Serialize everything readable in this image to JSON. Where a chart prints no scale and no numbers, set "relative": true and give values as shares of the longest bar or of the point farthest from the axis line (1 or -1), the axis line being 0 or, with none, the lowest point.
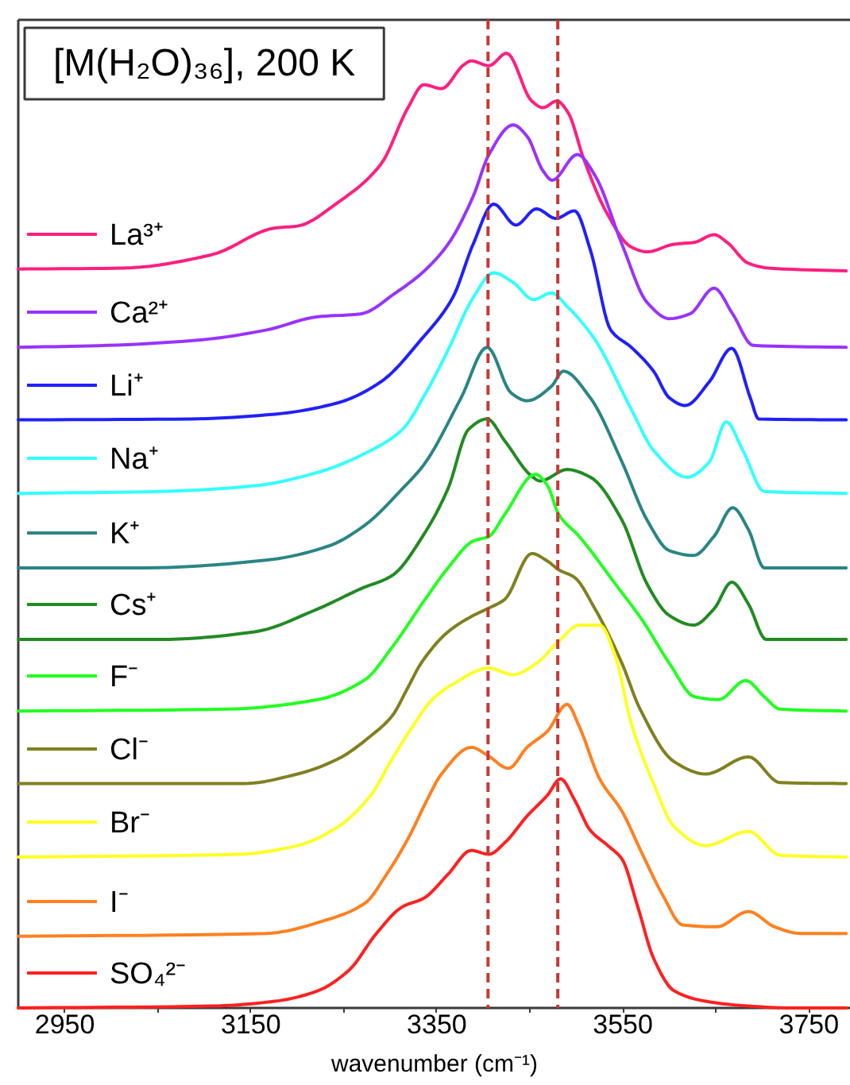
{
  "chart_data": {
    "type": "line",
    "title": "[M(H₂O)₃₆], 200 K",
    "xlabel": "wavenumber (cm⁻¹)",
    "relative": true,
    "xlim": [
      2900,
      3795
    ],
    "xticks": [
      2950,
      {
        "value": 3050,
        "label": null
      },
      3150,
      {
        "value": 3250,
        "label": null
      },
      3350,
      {
        "value": 3450,
        "label": null
      },
      3550,
      {
        "value": 3650,
        "label": null
      },
      3750
    ],
    "tick_labels": "x",
    "grid": false,
    "legend": "left",
    "ref_lines": [
      {
        "axis": "x",
        "value": 3405,
        "color": "#c83737",
        "line_style": "dashed"
      },
      {
        "axis": "x",
        "value": 3480,
        "color": "#c83737",
        "line_style": "dashed"
      }
    ],
    "series": [
      {
        "name": "La³⁺",
        "color": "#ff1f80",
        "x": [
          2900,
          3013,
          3108,
          3176,
          3200,
          3244,
          3290,
          3319,
          3336,
          3355,
          3379,
          3387,
          3406,
          3425,
          3452,
          3464,
          3479,
          3491,
          3508,
          3532,
          3559,
          3576,
          3605,
          3627,
          3648,
          3662,
          3685,
          3707,
          3790
        ],
        "values": [
          0.774,
          0.775,
          0.789,
          0.817,
          0.819,
          0.844,
          0.884,
          0.943,
          0.967,
          0.963,
          0.988,
          0.992,
          0.987,
          1.0,
          0.95,
          0.943,
          0.95,
          0.938,
          0.889,
          0.834,
          0.797,
          0.792,
          0.8,
          0.802,
          0.81,
          0.802,
          0.78,
          0.775,
          0.772
        ]
      },
      {
        "name": "Ca²⁺",
        "color": "#9933ff",
        "x": [
          2900,
          2996,
          3098,
          3166,
          3222,
          3268,
          3307,
          3333,
          3362,
          3389,
          3406,
          3432,
          3447,
          3464,
          3474,
          3501,
          3520,
          3549,
          3576,
          3600,
          3622,
          3648,
          3668,
          3690,
          3790
        ],
        "values": [
          0.692,
          0.694,
          0.7,
          0.71,
          0.724,
          0.727,
          0.75,
          0.769,
          0.8,
          0.85,
          0.894,
          0.925,
          0.913,
          0.877,
          0.867,
          0.894,
          0.872,
          0.8,
          0.739,
          0.722,
          0.727,
          0.754,
          0.727,
          0.694,
          0.692
        ]
      },
      {
        "name": "Li⁺",
        "color": "#2020ff",
        "x": [
          2900,
          3086,
          3176,
          3244,
          3290,
          3333,
          3367,
          3389,
          3411,
          3435,
          3457,
          3478,
          3498,
          3515,
          3537,
          3559,
          3583,
          3600,
          3617,
          3643,
          3667,
          3687,
          3696,
          3790
        ],
        "values": [
          0.616,
          0.617,
          0.622,
          0.634,
          0.656,
          0.7,
          0.744,
          0.8,
          0.842,
          0.82,
          0.837,
          0.827,
          0.835,
          0.794,
          0.71,
          0.692,
          0.667,
          0.639,
          0.631,
          0.656,
          0.691,
          0.639,
          0.617,
          0.616
        ]
      },
      {
        "name": "Na⁺",
        "color": "#33ffff",
        "x": [
          2900,
          3052,
          3154,
          3222,
          3279,
          3313,
          3338,
          3362,
          3389,
          3411,
          3432,
          3454,
          3473,
          3491,
          3520,
          3559,
          3583,
          3619,
          3643,
          3661,
          3679,
          3702,
          3790
        ],
        "values": [
          0.539,
          0.541,
          0.547,
          0.561,
          0.584,
          0.606,
          0.644,
          0.689,
          0.744,
          0.77,
          0.76,
          0.742,
          0.749,
          0.734,
          0.7,
          0.627,
          0.584,
          0.556,
          0.572,
          0.614,
          0.584,
          0.541,
          0.539
        ]
      },
      {
        "name": "K⁺",
        "color": "#2a8585",
        "x": [
          2900,
          3035,
          3166,
          3234,
          3273,
          3313,
          3336,
          3376,
          3404,
          3430,
          3447,
          3473,
          3486,
          3515,
          3549,
          3576,
          3600,
          3626,
          3648,
          3668,
          3685,
          3702,
          3790
        ],
        "values": [
          0.461,
          0.461,
          0.469,
          0.484,
          0.506,
          0.544,
          0.569,
          0.639,
          0.692,
          0.644,
          0.636,
          0.651,
          0.667,
          0.639,
          0.572,
          0.511,
          0.479,
          0.474,
          0.494,
          0.524,
          0.501,
          0.461,
          0.461
        ]
      },
      {
        "name": "Cs⁺",
        "color": "#228b22",
        "x": [
          2900,
          3052,
          3154,
          3222,
          3268,
          3302,
          3336,
          3362,
          3384,
          3404,
          3423,
          3452,
          3461,
          3490,
          3515,
          3549,
          3576,
          3600,
          3626,
          3648,
          3667,
          3685,
          3704,
          3790
        ],
        "values": [
          0.386,
          0.386,
          0.394,
          0.418,
          0.439,
          0.453,
          0.496,
          0.544,
          0.606,
          0.617,
          0.594,
          0.557,
          0.552,
          0.564,
          0.556,
          0.511,
          0.444,
          0.411,
          0.401,
          0.418,
          0.446,
          0.423,
          0.386,
          0.386
        ]
      },
      {
        "name": "F⁻",
        "color": "#22ff22",
        "x": [
          2900,
          3125,
          3222,
          3273,
          3302,
          3336,
          3362,
          3389,
          3406,
          3423,
          3456,
          3469,
          3481,
          3503,
          3542,
          3571,
          3600,
          3627,
          3653,
          3682,
          3702,
          3719,
          3790
        ],
        "values": [
          0.311,
          0.313,
          0.323,
          0.344,
          0.378,
          0.426,
          0.461,
          0.489,
          0.494,
          0.517,
          0.559,
          0.547,
          0.517,
          0.494,
          0.444,
          0.406,
          0.361,
          0.326,
          0.323,
          0.343,
          0.326,
          0.313,
          0.311
        ]
      },
      {
        "name": "Cl⁻",
        "color": "#808020",
        "x": [
          2900,
          3142,
          3200,
          3244,
          3279,
          3302,
          3318,
          3333,
          3362,
          3389,
          3404,
          3423,
          3452,
          3469,
          3481,
          3498,
          3520,
          3549,
          3568,
          3605,
          3639,
          3685,
          3719,
          3790
        ],
        "values": [
          0.235,
          0.235,
          0.245,
          0.261,
          0.285,
          0.306,
          0.334,
          0.361,
          0.394,
          0.411,
          0.418,
          0.428,
          0.476,
          0.468,
          0.459,
          0.451,
          0.418,
          0.361,
          0.314,
          0.258,
          0.245,
          0.263,
          0.236,
          0.235
        ]
      },
      {
        "name": "Br⁻",
        "color": "#ffff22",
        "x": [
          2900,
          3137,
          3200,
          3244,
          3279,
          3302,
          3324,
          3345,
          3367,
          3406,
          3432,
          3457,
          3481,
          3503,
          3525,
          3542,
          3559,
          3583,
          3605,
          3639,
          3685,
          3719,
          3790
        ],
        "values": [
          0.158,
          0.161,
          0.17,
          0.19,
          0.223,
          0.261,
          0.295,
          0.323,
          0.339,
          0.356,
          0.349,
          0.361,
          0.384,
          0.401,
          0.401,
          0.368,
          0.298,
          0.235,
          0.19,
          0.17,
          0.185,
          0.16,
          0.158
        ]
      },
      {
        "name": "I⁻",
        "color": "#ff8020",
        "x": [
          2900,
          3166,
          3234,
          3273,
          3296,
          3321,
          3338,
          3355,
          3387,
          3404,
          3427,
          3447,
          3469,
          3490,
          3503,
          3525,
          3549,
          3571,
          3593,
          3614,
          3651,
          3685,
          3713,
          3741,
          3790
        ],
        "values": [
          0.075,
          0.078,
          0.093,
          0.11,
          0.14,
          0.181,
          0.215,
          0.245,
          0.273,
          0.265,
          0.251,
          0.273,
          0.29,
          0.318,
          0.295,
          0.24,
          0.206,
          0.161,
          0.118,
          0.087,
          0.085,
          0.101,
          0.085,
          0.078,
          0.078
        ]
      },
      {
        "name": "SO₄²⁻",
        "color": "#ff2020",
        "x": [
          2900,
          3108,
          3176,
          3222,
          3256,
          3285,
          3313,
          3336,
          3362,
          3387,
          3406,
          3423,
          3447,
          3469,
          3483,
          3498,
          3515,
          3534,
          3549,
          3566,
          3583,
          3605,
          3639,
          3685,
          3730,
          3790
        ],
        "values": [
          0,
          0.002,
          0.007,
          0.018,
          0.04,
          0.078,
          0.106,
          0.115,
          0.14,
          0.165,
          0.161,
          0.173,
          0.201,
          0.223,
          0.24,
          0.218,
          0.186,
          0.17,
          0.156,
          0.106,
          0.052,
          0.018,
          0.007,
          0.002,
          0,
          0
        ]
      }
    ]
  }
}
